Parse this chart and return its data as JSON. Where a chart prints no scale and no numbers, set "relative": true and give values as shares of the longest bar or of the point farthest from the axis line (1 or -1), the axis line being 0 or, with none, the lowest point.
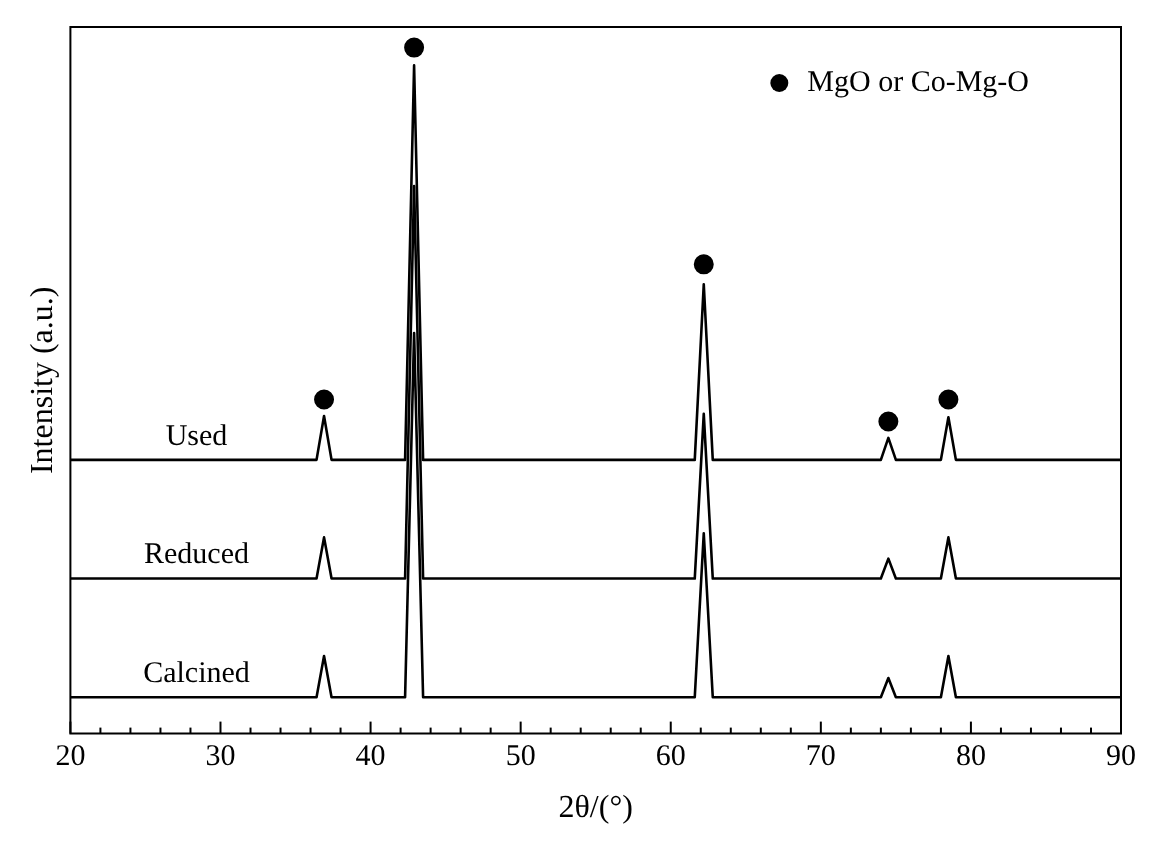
{
  "chart_data": {
    "type": "line",
    "relative": true,
    "xlabel": "2θ/(°)",
    "ylabel": "Intensity (a.u.)",
    "xlim": [
      20,
      90
    ],
    "xticks": [
      20,
      {
        "value": 22,
        "label": null
      },
      {
        "value": 24,
        "label": null
      },
      {
        "value": 26,
        "label": null
      },
      {
        "value": 28,
        "label": null
      },
      30,
      {
        "value": 32,
        "label": null
      },
      {
        "value": 34,
        "label": null
      },
      {
        "value": 36,
        "label": null
      },
      {
        "value": 38,
        "label": null
      },
      40,
      {
        "value": 42,
        "label": null
      },
      {
        "value": 44,
        "label": null
      },
      {
        "value": 46,
        "label": null
      },
      {
        "value": 48,
        "label": null
      },
      50,
      {
        "value": 52,
        "label": null
      },
      {
        "value": 54,
        "label": null
      },
      {
        "value": 56,
        "label": null
      },
      {
        "value": 58,
        "label": null
      },
      60,
      {
        "value": 62,
        "label": null
      },
      {
        "value": 64,
        "label": null
      },
      {
        "value": 66,
        "label": null
      },
      {
        "value": 68,
        "label": null
      },
      70,
      {
        "value": 72,
        "label": null
      },
      {
        "value": 74,
        "label": null
      },
      {
        "value": 76,
        "label": null
      },
      {
        "value": 78,
        "label": null
      },
      80,
      {
        "value": 82,
        "label": null
      },
      {
        "value": 84,
        "label": null
      },
      {
        "value": 86,
        "label": null
      },
      {
        "value": 88,
        "label": null
      },
      90
    ],
    "grid": false,
    "legend": "top right",
    "marker": "none",
    "line_style": "solid",
    "series": [
      {
        "name": "Used",
        "color": "#000000",
        "x": [
          20,
          36.4,
          36.9,
          37.4,
          42.3,
          42.9,
          43.5,
          61.6,
          62.2,
          62.8,
          74.0,
          74.5,
          75.0,
          78.0,
          78.5,
          79.0,
          90
        ],
        "values": [
          0.399,
          0.399,
          0.463,
          0.399,
          0.399,
          0.974,
          0.399,
          0.399,
          0.655,
          0.399,
          0.399,
          0.431,
          0.399,
          0.399,
          0.461,
          0.399,
          0.399
        ]
      },
      {
        "name": "Reduced",
        "color": "#000000",
        "x": [
          20,
          36.4,
          36.9,
          37.4,
          42.3,
          42.9,
          43.5,
          61.6,
          62.2,
          62.8,
          74.0,
          74.5,
          75.0,
          78.0,
          78.5,
          79.0,
          90
        ],
        "values": [
          0.226,
          0.226,
          0.286,
          0.226,
          0.226,
          0.798,
          0.226,
          0.226,
          0.466,
          0.226,
          0.226,
          0.255,
          0.226,
          0.226,
          0.286,
          0.226,
          0.226
        ]
      },
      {
        "name": "Calcined",
        "color": "#000000",
        "x": [
          20,
          36.4,
          36.9,
          37.4,
          42.3,
          42.9,
          43.5,
          61.6,
          62.2,
          62.8,
          74.0,
          74.5,
          75.0,
          78.0,
          78.5,
          79.0,
          90
        ],
        "values": [
          0.053,
          0.053,
          0.113,
          0.053,
          0.053,
          0.584,
          0.053,
          0.053,
          0.292,
          0.053,
          0.053,
          0.081,
          0.053,
          0.053,
          0.113,
          0.053,
          0.053
        ]
      },
      {
        "name": "MgO or Co-Mg-O",
        "type": "scatter",
        "marker": "circle",
        "color": "#000000",
        "x": [
          36.9,
          42.9,
          62.2,
          74.5,
          78.5
        ],
        "values": [
          0.487,
          1,
          0.684,
          0.455,
          0.487
        ]
      }
    ]
  }
}
